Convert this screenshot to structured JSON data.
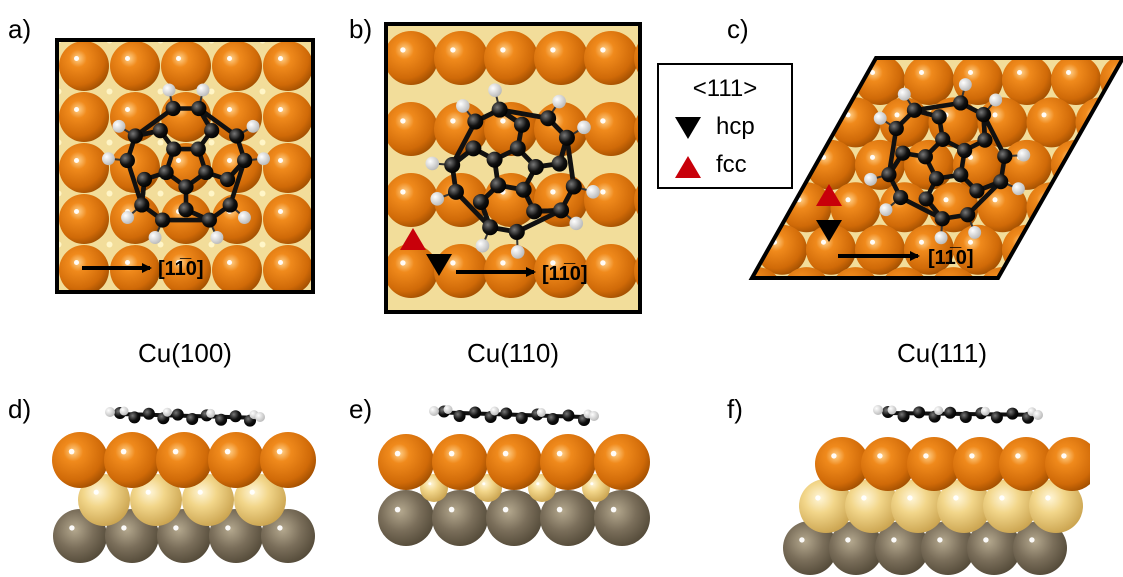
{
  "panels": {
    "a": {
      "letter": "a)",
      "surface": "Cu(100)",
      "direction": "[11̅0]"
    },
    "b": {
      "letter": "b)",
      "surface": "Cu(110)",
      "direction": "[11̅0]"
    },
    "c": {
      "letter": "c)",
      "surface": "Cu(111)",
      "direction": "[11̅0]"
    },
    "d": {
      "letter": "d)"
    },
    "e": {
      "letter": "e)"
    },
    "f": {
      "letter": "f)"
    }
  },
  "legend": {
    "title": "<111>",
    "items": [
      {
        "label": "hcp",
        "marker": "down-triangle",
        "color": "#000000"
      },
      {
        "label": "fcc",
        "marker": "up-triangle",
        "color": "#c8000a"
      }
    ]
  },
  "colors": {
    "copper_top": "#e07d12",
    "copper_second": "#efcf7a",
    "copper_third": "#7a6e5a",
    "substrate_bg": "#f2dd9a",
    "molecule_carbon": "#111111",
    "molecule_hydrogen": "#e8e8e8",
    "hcp_marker": "#000000",
    "fcc_marker": "#c8000a"
  }
}
